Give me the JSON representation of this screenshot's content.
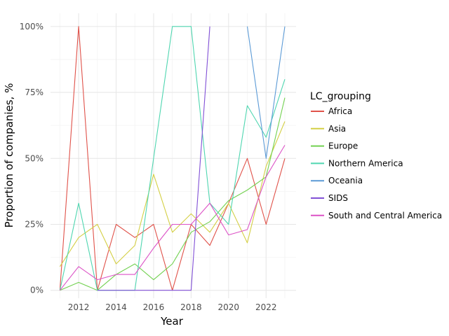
{
  "chart_data": {
    "type": "line",
    "title": "",
    "xlabel": "Year",
    "ylabel": "Proportion of companies, %",
    "xlim": [
      2010.5,
      2023.6
    ],
    "ylim": [
      -0.03,
      1.05
    ],
    "x_ticks": [
      2012,
      2014,
      2016,
      2018,
      2020,
      2022
    ],
    "x_tick_labels": [
      "2012",
      "2014",
      "2016",
      "2018",
      "2020",
      "2022"
    ],
    "y_ticks": [
      0,
      0.25,
      0.5,
      0.75,
      1.0
    ],
    "y_tick_labels": [
      "0%",
      "25%",
      "50%",
      "75%",
      "100%"
    ],
    "grid": true,
    "legend_title": "LC_grouping",
    "legend_position": "right",
    "series": [
      {
        "name": "Africa",
        "color": "#e0524a",
        "points": [
          [
            2011,
            0
          ],
          [
            2012,
            1.0
          ],
          [
            2013,
            0
          ],
          [
            2014,
            0.25
          ],
          [
            2015,
            0.2
          ],
          [
            2016,
            0.25
          ],
          [
            2017,
            0
          ],
          [
            2018,
            0.25
          ],
          [
            2019,
            0.17
          ],
          [
            2020,
            0.33
          ],
          [
            2021,
            0.5
          ],
          [
            2022,
            0.25
          ],
          [
            2023,
            0.5
          ]
        ]
      },
      {
        "name": "Asia",
        "color": "#d4cf45",
        "points": [
          [
            2011,
            0.09
          ],
          [
            2012,
            0.2
          ],
          [
            2013,
            0.25
          ],
          [
            2014,
            0.1
          ],
          [
            2015,
            0.17
          ],
          [
            2016,
            0.44
          ],
          [
            2017,
            0.22
          ],
          [
            2018,
            0.29
          ],
          [
            2019,
            0.22
          ],
          [
            2020,
            0.33
          ],
          [
            2021,
            0.18
          ],
          [
            2022,
            0.47
          ],
          [
            2023,
            0.64
          ]
        ]
      },
      {
        "name": "Europe",
        "color": "#72d150",
        "points": [
          [
            2011,
            0
          ],
          [
            2012,
            0.03
          ],
          [
            2013,
            0
          ],
          [
            2014,
            0.06
          ],
          [
            2015,
            0.1
          ],
          [
            2016,
            0.04
          ],
          [
            2017,
            0.1
          ],
          [
            2018,
            0.22
          ],
          [
            2019,
            0.26
          ],
          [
            2020,
            0.34
          ],
          [
            2021,
            0.38
          ],
          [
            2022,
            0.43
          ],
          [
            2023,
            0.73
          ]
        ]
      },
      {
        "name": "Northern America",
        "color": "#4fd6b0",
        "points": [
          [
            2011,
            0
          ],
          [
            2012,
            0.33
          ],
          [
            2013,
            0
          ],
          [
            2014,
            0
          ],
          [
            2015,
            0
          ],
          [
            2016,
            0.5
          ],
          [
            2017,
            1.0
          ],
          [
            2018,
            1.0
          ],
          [
            2019,
            0.33
          ],
          [
            2020,
            0.25
          ],
          [
            2021,
            0.7
          ],
          [
            2022,
            0.58
          ],
          [
            2023,
            0.8
          ]
        ]
      },
      {
        "name": "Oceania",
        "color": "#5b9ad6",
        "points": [
          [
            2021,
            1.0
          ],
          [
            2022,
            0.5
          ],
          [
            2023,
            1.0
          ]
        ]
      },
      {
        "name": "SIDS",
        "color": "#8150d6",
        "points": [
          [
            2013,
            0
          ],
          [
            2014,
            0
          ],
          [
            2015,
            0
          ],
          [
            2016,
            0
          ],
          [
            2017,
            0
          ],
          [
            2018,
            0
          ],
          [
            2019,
            1.0
          ]
        ]
      },
      {
        "name": "South and Central America",
        "color": "#dc52c6",
        "points": [
          [
            2011,
            0
          ],
          [
            2012,
            0.09
          ],
          [
            2013,
            0.04
          ],
          [
            2014,
            0.06
          ],
          [
            2015,
            0.06
          ],
          [
            2016,
            0.16
          ],
          [
            2017,
            0.25
          ],
          [
            2018,
            0.25
          ],
          [
            2019,
            0.33
          ],
          [
            2020,
            0.21
          ],
          [
            2021,
            0.23
          ],
          [
            2022,
            0.43
          ],
          [
            2023,
            0.55
          ]
        ]
      }
    ]
  }
}
